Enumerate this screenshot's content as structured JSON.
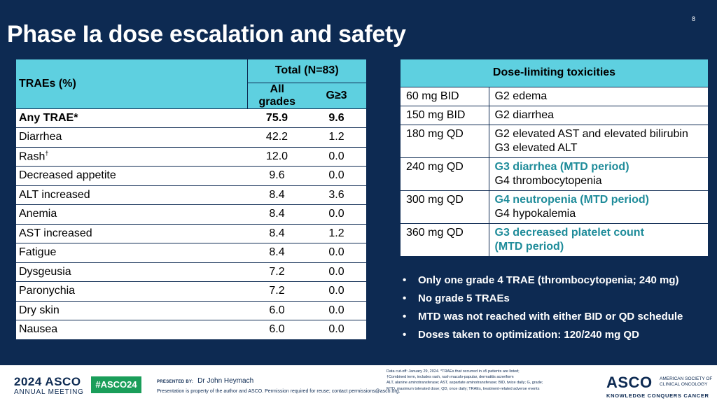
{
  "page_number": "8",
  "title": "Phase Ia dose escalation and safety",
  "trae_table": {
    "header_label": "TRAEs (%)",
    "total_label": "Total (N=83)",
    "col_all": "All grades",
    "col_g3": "G≥3",
    "rows": [
      {
        "name": "Any TRAE*",
        "all": "75.9",
        "g3": "9.6"
      },
      {
        "name": "Diarrhea",
        "all": "42.2",
        "g3": "1.2"
      },
      {
        "name": "Rash",
        "sup": "†",
        "all": "12.0",
        "g3": "0.0"
      },
      {
        "name": "Decreased appetite",
        "all": "9.6",
        "g3": "0.0"
      },
      {
        "name": "ALT increased",
        "all": "8.4",
        "g3": "3.6"
      },
      {
        "name": "Anemia",
        "all": "8.4",
        "g3": "0.0"
      },
      {
        "name": "AST increased",
        "all": "8.4",
        "g3": "1.2"
      },
      {
        "name": "Fatigue",
        "all": "8.4",
        "g3": "0.0"
      },
      {
        "name": "Dysgeusia",
        "all": "7.2",
        "g3": "0.0"
      },
      {
        "name": "Paronychia",
        "all": "7.2",
        "g3": "0.0"
      },
      {
        "name": "Dry skin",
        "all": "6.0",
        "g3": "0.0"
      },
      {
        "name": "Nausea",
        "all": "6.0",
        "g3": "0.0"
      }
    ]
  },
  "dlt_table": {
    "header": "Dose-limiting toxicities",
    "rows": [
      {
        "dose": "60 mg BID",
        "lines": [
          {
            "text": "G2 edema",
            "highlight": false
          }
        ]
      },
      {
        "dose": "150 mg BID",
        "lines": [
          {
            "text": "G2 diarrhea",
            "highlight": false
          }
        ]
      },
      {
        "dose": "180 mg QD",
        "lines": [
          {
            "text": "G2 elevated AST and elevated bilirubin",
            "highlight": false
          },
          {
            "text": "G3 elevated ALT",
            "highlight": false
          }
        ]
      },
      {
        "dose": "240 mg QD",
        "lines": [
          {
            "text": "G3 diarrhea (MTD period)",
            "highlight": true
          },
          {
            "text": "G4 thrombocytopenia",
            "highlight": false
          }
        ]
      },
      {
        "dose": "300 mg QD",
        "lines": [
          {
            "text": "G4 neutropenia (MTD period)",
            "highlight": true
          },
          {
            "text": "G4 hypokalemia",
            "highlight": false
          }
        ]
      },
      {
        "dose": "360 mg QD",
        "lines": [
          {
            "text": "G3 decreased platelet count",
            "highlight": true
          },
          {
            "text": "(MTD period)",
            "highlight": true
          }
        ]
      }
    ]
  },
  "bullets": [
    "Only one grade 4 TRAE (thrombocytopenia; 240 mg)",
    "No grade 5 TRAEs",
    "MTD was not reached with either BID or QD schedule",
    "Doses taken to optimization: 120/240 mg QD"
  ],
  "footer": {
    "meeting_year": "2024",
    "meeting_org": "ASCO",
    "meeting_label": "ANNUAL MEETING",
    "hashtag": "#ASCO24",
    "presented_by_label": "PRESENTED BY:",
    "presenter": "Dr John Heymach",
    "property_notice": "Presentation is property of the author and ASCO. Permission required for reuse; contact permissions@asco.org.",
    "footnotes": [
      "Data cut-off: January 29, 2024. *TRAEs that occurred in ≥5 patients are listed;",
      "†Combined term, includes rash, rash maculo-papular, dermatitis acneiform",
      "ALT, alanine aminotransferase; AST, aspartate aminotransferase; BID, twice daily; G, grade;",
      "MTD, maximum tolerated dose; QD, once daily; TRAEs, treatment-related adverse events"
    ],
    "logo_word": "ASCO",
    "society_lines": [
      "AMERICAN SOCIETY OF",
      "CLINICAL ONCOLOGY"
    ],
    "tagline": "KNOWLEDGE CONQUERS CANCER"
  },
  "colors": {
    "background": "#0d2a52",
    "header_teal": "#5ed0e0",
    "highlight_teal": "#1f8c9a",
    "hashtag_green": "#1a9e5a"
  }
}
